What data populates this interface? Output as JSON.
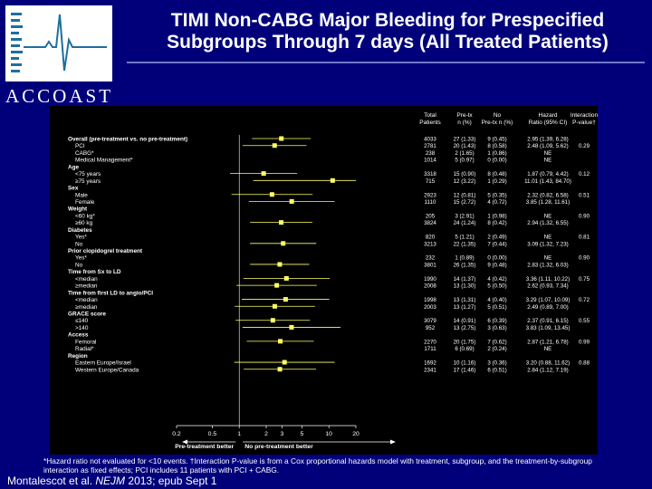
{
  "slide": {
    "title_line1": "TIMI Non-CABG Major Bleeding for Prespecified",
    "title_line2": "Subgroups Through 7 days (All Treated Patients)",
    "logo_text": "ACCOAST",
    "footnote": "*Hazard ratio not evaluated for <10 events. †Interaction P-value is from a Cox proportional hazards model with treatment, subgroup, and the treatment-by-subgroup interaction as fixed effects; PCI includes 11 patients with PCI + CABG.",
    "citation_prefix": "Montalescot et al. ",
    "citation_journal": "NEJM",
    "citation_suffix": " 2013; epub Sept 1"
  },
  "colors": {
    "background": "#01007a",
    "panel": "#000000",
    "marker": "#ffff66",
    "text": "#ffffff",
    "rule": "#6f77c9"
  },
  "chart_data": {
    "type": "forest",
    "xscale": "log",
    "xlim": [
      0.2,
      20
    ],
    "xticks": [
      "0.2",
      "0.5",
      "1",
      "2",
      "3",
      "5",
      "10",
      "20"
    ],
    "reference_line": 1,
    "xlabel_left": "Pre-treatment better",
    "xlabel_right": "No pre-treatment better",
    "headers": [
      "Total Patients",
      "Pre-tx n (%)",
      "No Pre-tx n (%)",
      "Hazard Ratio (95% CI)",
      "Interaction P-value†"
    ],
    "rows": [
      {
        "label": "Overall (pre-treatment vs. no pre-treatment)",
        "level": 0,
        "total": "4033",
        "pre": "27 (1.33)",
        "nopre": "9 (0.45)",
        "hr_text": "2.95 (1.39, 6.28)",
        "p": "",
        "hr": 2.95,
        "lo": 1.39,
        "hi": 6.28
      },
      {
        "label": "PCI",
        "level": 1,
        "total": "2781",
        "pre": "20 (1.43)",
        "nopre": "8 (0.58)",
        "hr_text": "2.48 (1.09, 5.62)",
        "p": "0.29",
        "hr": 2.48,
        "lo": 1.09,
        "hi": 5.62
      },
      {
        "label": "CABG*",
        "level": 1,
        "total": "238",
        "pre": "2 (1.65)",
        "nopre": "1 (0.86)",
        "hr_text": "NE",
        "p": ""
      },
      {
        "label": "Medical Management*",
        "level": 1,
        "total": "1014",
        "pre": "5 (0.97)",
        "nopre": "0 (0.00)",
        "hr_text": "NE",
        "p": ""
      },
      {
        "label": "Age",
        "level": 0,
        "header": true
      },
      {
        "label": "<75 years",
        "level": 1,
        "total": "3318",
        "pre": "15 (0.90)",
        "nopre": "8 (0.48)",
        "hr_text": "1.87 (0.79, 4.42)",
        "p": "0.12",
        "hr": 1.87,
        "lo": 0.79,
        "hi": 4.42
      },
      {
        "label": "≥75 years",
        "level": 1,
        "total": "715",
        "pre": "12 (3.22)",
        "nopre": "1 (0.29)",
        "hr_text": "11.01 (1.43, 84.70)",
        "p": "",
        "hr": 11.01,
        "lo": 1.43,
        "hi": 84.7
      },
      {
        "label": "Sex",
        "level": 0,
        "header": true
      },
      {
        "label": "Male",
        "level": 1,
        "total": "2923",
        "pre": "12 (0.81)",
        "nopre": "5 (0.35)",
        "hr_text": "2.32 (0.82, 6.58)",
        "p": "0.51",
        "hr": 2.32,
        "lo": 0.82,
        "hi": 6.58
      },
      {
        "label": "Female",
        "level": 1,
        "total": "1110",
        "pre": "15 (2.72)",
        "nopre": "4 (0.72)",
        "hr_text": "3.85 (1.28, 11.61)",
        "p": "",
        "hr": 3.85,
        "lo": 1.28,
        "hi": 11.61
      },
      {
        "label": "Weight",
        "level": 0,
        "header": true
      },
      {
        "label": "<60 kg*",
        "level": 1,
        "total": "205",
        "pre": "3 (2.91)",
        "nopre": "1 (0.98)",
        "hr_text": "NE",
        "p": "0.90"
      },
      {
        "label": "≥60 kg",
        "level": 1,
        "total": "3824",
        "pre": "24 (1.24)",
        "nopre": "8 (0.42)",
        "hr_text": "2.94 (1.32, 6.55)",
        "p": "",
        "hr": 2.94,
        "lo": 1.32,
        "hi": 6.55
      },
      {
        "label": "Diabetes",
        "level": 0,
        "header": true
      },
      {
        "label": "Yes*",
        "level": 1,
        "total": "820",
        "pre": "5 (1.21)",
        "nopre": "2 (0.49)",
        "hr_text": "NE",
        "p": "0.81"
      },
      {
        "label": "No",
        "level": 1,
        "total": "3213",
        "pre": "22 (1.35)",
        "nopre": "7 (0.44)",
        "hr_text": "3.09 (1.32, 7.23)",
        "p": "",
        "hr": 3.09,
        "lo": 1.32,
        "hi": 7.23
      },
      {
        "label": "Prior clopidogrel treatment",
        "level": 0,
        "header": true
      },
      {
        "label": "Yes*",
        "level": 1,
        "total": "232",
        "pre": "1 (0.89)",
        "nopre": "0 (0.00)",
        "hr_text": "NE",
        "p": "0.90"
      },
      {
        "label": "No",
        "level": 1,
        "total": "3801",
        "pre": "26 (1.35)",
        "nopre": "9 (0.48)",
        "hr_text": "2.83 (1.32, 6.03)",
        "p": "",
        "hr": 2.83,
        "lo": 1.32,
        "hi": 6.03
      },
      {
        "label": "Time from Sx to LD",
        "level": 0,
        "header": true
      },
      {
        "label": "<median",
        "level": 1,
        "total": "1990",
        "pre": "14 (1.37)",
        "nopre": "4 (0.42)",
        "hr_text": "3.36 (1.11, 10.22)",
        "p": "0.75",
        "hr": 3.36,
        "lo": 1.11,
        "hi": 10.22
      },
      {
        "label": "≥median",
        "level": 1,
        "total": "2008",
        "pre": "13 (1.30)",
        "nopre": "5 (0.50)",
        "hr_text": "2.62 (0.93, 7.34)",
        "p": "",
        "hr": 2.62,
        "lo": 0.93,
        "hi": 7.34
      },
      {
        "label": "Time from first LD to angio/PCI",
        "level": 0,
        "header": true
      },
      {
        "label": "<median",
        "level": 1,
        "total": "1998",
        "pre": "13 (1.31)",
        "nopre": "4 (0.40)",
        "hr_text": "3.29 (1.07, 10.09)",
        "p": "0.72",
        "hr": 3.29,
        "lo": 1.07,
        "hi": 10.09
      },
      {
        "label": "≥median",
        "level": 1,
        "total": "2003",
        "pre": "13 (1.27)",
        "nopre": "5 (0.51)",
        "hr_text": "2.49 (0.89, 7.00)",
        "p": "",
        "hr": 2.49,
        "lo": 0.89,
        "hi": 7.0
      },
      {
        "label": "GRACE score",
        "level": 0,
        "header": true
      },
      {
        "label": "≤140",
        "level": 1,
        "total": "3079",
        "pre": "14 (0.91)",
        "nopre": "6 (0.39)",
        "hr_text": "2.37 (0.91, 6.15)",
        "p": "0.55",
        "hr": 2.37,
        "lo": 0.91,
        "hi": 6.15
      },
      {
        "label": ">140",
        "level": 1,
        "total": "952",
        "pre": "13 (2.75)",
        "nopre": "3 (0.63)",
        "hr_text": "3.83 (1.09, 13.45)",
        "p": "",
        "hr": 3.83,
        "lo": 1.09,
        "hi": 13.45
      },
      {
        "label": "Access",
        "level": 0,
        "header": true
      },
      {
        "label": "Femoral",
        "level": 1,
        "total": "2270",
        "pre": "20 (1.75)",
        "nopre": "7 (0.62)",
        "hr_text": "2.87 (1.21, 6.78)",
        "p": "0.99",
        "hr": 2.87,
        "lo": 1.21,
        "hi": 6.78
      },
      {
        "label": "Radial*",
        "level": 1,
        "total": "1711",
        "pre": "6 (0.69)",
        "nopre": "2 (0.24)",
        "hr_text": "NE",
        "p": ""
      },
      {
        "label": "Region",
        "level": 0,
        "header": true
      },
      {
        "label": "Eastern Europe/Israel",
        "level": 1,
        "total": "1692",
        "pre": "10 (1.16)",
        "nopre": "3 (0.36)",
        "hr_text": "3.20 (0.88, 11.62)",
        "p": "0.88",
        "hr": 3.2,
        "lo": 0.88,
        "hi": 11.62
      },
      {
        "label": "Western Europe/Canada",
        "level": 1,
        "total": "2341",
        "pre": "17 (1.46)",
        "nopre": "6 (0.51)",
        "hr_text": "2.84 (1.12, 7.19)",
        "p": "",
        "hr": 2.84,
        "lo": 1.12,
        "hi": 7.19
      }
    ]
  }
}
